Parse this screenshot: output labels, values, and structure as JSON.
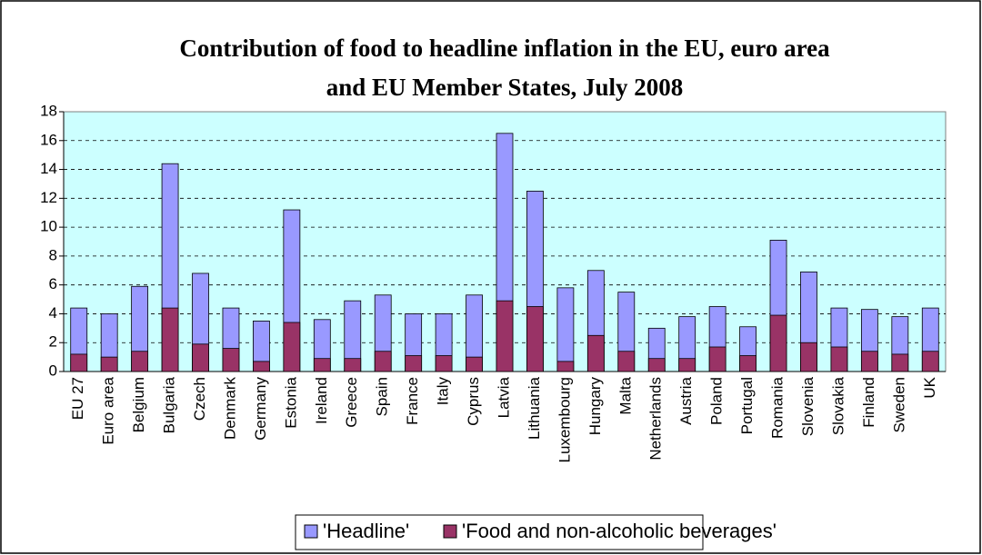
{
  "chart_data": {
    "type": "bar",
    "title": [
      "Contribution of food to headline inflation in the EU, euro area",
      "and EU Member States, July 2008"
    ],
    "categories": [
      "EU 27",
      "Euro area",
      "Belgium",
      "Bulgaria",
      "Czech",
      "Denmark",
      "Germany",
      "Estonia",
      "Ireland",
      "Greece",
      "Spain",
      "France",
      "Italy",
      "Cyprus",
      "Latvia",
      "Lithuania",
      "Luxembourg",
      "Hungary",
      "Malta",
      "Netherlands",
      "Austria",
      "Poland",
      "Portugal",
      "Romania",
      "Slovenia",
      "Slovakia",
      "Finland",
      "Sweden",
      "UK"
    ],
    "series": [
      {
        "name": "'Headline'",
        "color": "#9999ff",
        "values": [
          4.4,
          4.0,
          5.9,
          14.4,
          6.8,
          4.4,
          3.5,
          11.2,
          3.6,
          4.9,
          5.3,
          4.0,
          4.0,
          5.3,
          16.5,
          12.5,
          5.8,
          7.0,
          5.5,
          3.0,
          3.8,
          4.5,
          3.1,
          9.1,
          6.9,
          4.4,
          4.3,
          3.8,
          4.4
        ]
      },
      {
        "name": "'Food and non-alcoholic beverages'",
        "color": "#993366",
        "values": [
          1.2,
          1.0,
          1.4,
          4.4,
          1.9,
          1.6,
          0.7,
          3.4,
          0.9,
          0.9,
          1.4,
          1.1,
          1.1,
          1.0,
          4.9,
          4.5,
          0.7,
          2.5,
          1.4,
          0.9,
          0.9,
          1.7,
          1.1,
          3.9,
          2.0,
          1.7,
          1.4,
          1.2,
          1.4
        ]
      }
    ],
    "ylim": [
      0,
      18
    ],
    "yticks": [
      0,
      2,
      4,
      6,
      8,
      10,
      12,
      14,
      16,
      18
    ],
    "grid": true,
    "legend": "bottom"
  }
}
